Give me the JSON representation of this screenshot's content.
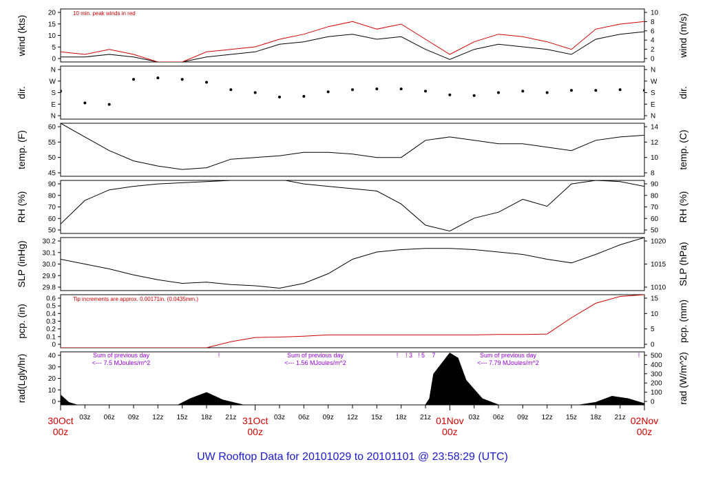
{
  "title": "UW Rooftop Data for 20101029  to  20101101 @ 23:58:29  (UTC)",
  "colors": {
    "frame": "#000000",
    "line": "#000000",
    "peak": "#d00000",
    "precip": "#d00000",
    "note": "#d00000",
    "sums": "#9400d3",
    "title": "#1a1acc",
    "days": "#d00000"
  },
  "x_axis": {
    "hour_ticks": [
      "03z",
      "06z",
      "09z",
      "12z",
      "15z",
      "18z",
      "21z",
      "03z",
      "06z",
      "09z",
      "12z",
      "15z",
      "18z",
      "21z",
      "03z",
      "06z",
      "09z",
      "12z",
      "15z",
      "18z",
      "21z"
    ],
    "hour_positions_h": [
      3,
      6,
      9,
      12,
      15,
      18,
      21,
      27,
      30,
      33,
      36,
      39,
      42,
      45,
      51,
      54,
      57,
      60,
      63,
      66,
      69
    ],
    "days": [
      {
        "date": "30Oct",
        "time": "00z",
        "h": 0
      },
      {
        "date": "31Oct",
        "time": "00z",
        "h": 24
      },
      {
        "date": "01Nov",
        "time": "00z",
        "h": 48
      },
      {
        "date": "02Nov",
        "time": "00z",
        "h": 72
      }
    ]
  },
  "panels": {
    "wind": {
      "left_label": "wind (kts)",
      "right_label": "wind (m/s)",
      "left_ticks": [
        "0",
        "5",
        "10",
        "15",
        "20"
      ],
      "right_ticks": [
        "0",
        "2",
        "4",
        "6",
        "8",
        "10"
      ],
      "note": "10 min. peak winds in red"
    },
    "dir": {
      "left_label": "dir.",
      "right_label": "dir.",
      "left_ticks": [
        "N",
        "E",
        "S",
        "W",
        "N"
      ],
      "right_ticks": [
        "N",
        "E",
        "S",
        "W",
        "N"
      ]
    },
    "temp": {
      "left_label": "temp. (F)",
      "right_label": "temp. (C)",
      "left_ticks": [
        "45",
        "50",
        "55",
        "60"
      ],
      "right_ticks": [
        "8",
        "10",
        "12",
        "14"
      ]
    },
    "rh": {
      "left_label": "RH (%)",
      "right_label": "RH (%)",
      "left_ticks": [
        "50",
        "60",
        "70",
        "80",
        "90"
      ],
      "right_ticks": [
        "50",
        "60",
        "70",
        "80",
        "90"
      ]
    },
    "slp": {
      "left_label": "SLP (inHg)",
      "right_label": "SLP (hPa)",
      "left_ticks": [
        "29.8",
        "29.9",
        "30.0",
        "30.1",
        "30.2"
      ],
      "right_ticks": [
        "1010",
        "1015",
        "1020"
      ]
    },
    "pcp": {
      "left_label": "pcp. (in)",
      "right_label": "pcp. (mm)",
      "left_ticks": [
        "0",
        "0.1",
        "0.2",
        "0.3",
        "0.4",
        "0.5",
        "0.6"
      ],
      "right_ticks": [
        "0",
        "5",
        "10",
        "15"
      ],
      "note": "Tip increments are approx. 0.00171in. (0.0435mm.)"
    },
    "rad": {
      "left_label": "rad(Lgly/hr)",
      "right_label": "rad (W/m^2)",
      "left_ticks": [
        "0",
        "10",
        "20",
        "30",
        "40"
      ],
      "right_ticks": [
        "0",
        "100",
        "200",
        "300",
        "400",
        "500"
      ],
      "sums": [
        {
          "line1": "Sum of previous day",
          "line2": "<--- 7.5 MJoules/m^2"
        },
        {
          "line1": "Sum of previous day",
          "line2": "<--- 1.56 MJoules/m^2"
        },
        {
          "line1": "Sum of previous day",
          "line2": "<--- 7.79 MJoules/m^2"
        }
      ],
      "tip_marks": [
        "!",
        "!",
        "! 3",
        "! 5",
        "7",
        "!"
      ]
    }
  },
  "chart_data": [
    {
      "type": "line",
      "title": "wind",
      "ylabel": "wind (kts)",
      "y2label": "wind (m/s)",
      "ylim": [
        0,
        21
      ],
      "x_unit": "hours since 30Oct 00z",
      "xlim": [
        0,
        72
      ],
      "series": [
        {
          "x": [
            0,
            3,
            6,
            9,
            12,
            15,
            18,
            21,
            24,
            27,
            30,
            33,
            36,
            39,
            42,
            45,
            48,
            51,
            54,
            57,
            60,
            63,
            66,
            69,
            72
          ],
          "y": [
            2,
            2,
            3,
            2,
            0,
            0,
            2,
            3,
            4,
            7,
            8,
            10,
            11,
            9,
            10,
            5,
            1,
            5,
            7,
            6,
            5,
            3,
            9,
            11,
            12
          ]
        },
        {
          "x": [
            0,
            3,
            6,
            9,
            12,
            15,
            18,
            21,
            24,
            27,
            30,
            33,
            36,
            39,
            42,
            45,
            48,
            51,
            54,
            57,
            60,
            63,
            66,
            69,
            72
          ],
          "y": [
            4,
            3,
            5,
            3,
            0,
            0,
            4,
            5,
            6,
            9,
            11,
            14,
            16,
            13,
            15,
            9,
            3,
            8,
            11,
            10,
            8,
            5,
            13,
            15,
            16
          ]
        }
      ]
    },
    {
      "type": "scatter",
      "title": "dir",
      "ylabel": "dir.",
      "ylim": [
        0,
        360
      ],
      "x_unit": "hours since 30Oct 00z",
      "xlim": [
        0,
        72
      ],
      "series": [
        {
          "x": [
            0,
            3,
            6,
            9,
            12,
            15,
            18,
            21,
            24,
            27,
            30,
            33,
            36,
            39,
            42,
            45,
            48,
            51,
            54,
            57,
            60,
            63,
            66,
            69,
            72
          ],
          "y": [
            190,
            110,
            100,
            270,
            280,
            270,
            250,
            200,
            180,
            150,
            155,
            185,
            200,
            205,
            205,
            190,
            165,
            160,
            180,
            190,
            180,
            195,
            195,
            200,
            195
          ]
        }
      ]
    },
    {
      "type": "line",
      "title": "temp",
      "ylabel": "temp. (F)",
      "y2label": "temp. (C)",
      "ylim": [
        44.5,
        60
      ],
      "x_unit": "hours since 30Oct 00z",
      "xlim": [
        0,
        72
      ],
      "series": [
        {
          "x": [
            0,
            3,
            6,
            9,
            12,
            15,
            18,
            21,
            24,
            27,
            30,
            33,
            36,
            39,
            42,
            45,
            48,
            51,
            54,
            57,
            60,
            63,
            66,
            69,
            72
          ],
          "y": [
            60,
            56,
            52,
            49,
            47.5,
            46.5,
            47,
            49.5,
            50,
            50.5,
            51.5,
            51.5,
            51,
            50,
            50,
            55,
            56,
            55,
            54,
            54,
            53,
            52,
            55,
            56,
            56.5
          ]
        }
      ]
    },
    {
      "type": "line",
      "title": "rh",
      "ylabel": "RH (%)",
      "y2label": "RH (%)",
      "ylim": [
        50,
        95
      ],
      "x_unit": "hours since 30Oct 00z",
      "xlim": [
        0,
        72
      ],
      "series": [
        {
          "x": [
            0,
            3,
            6,
            9,
            12,
            15,
            18,
            21,
            24,
            27,
            30,
            33,
            36,
            39,
            42,
            45,
            48,
            51,
            54,
            57,
            60,
            63,
            66,
            69,
            72
          ],
          "y": [
            58,
            78,
            87,
            90,
            92,
            93,
            94,
            95,
            96,
            96,
            92,
            90,
            88,
            86,
            75,
            57,
            52,
            63,
            68,
            79,
            73,
            92,
            95,
            94,
            90
          ]
        }
      ]
    },
    {
      "type": "line",
      "title": "slp",
      "ylabel": "SLP (inHg)",
      "y2label": "SLP (hPa)",
      "ylim": [
        29.79,
        30.23
      ],
      "x_unit": "hours since 30Oct 00z",
      "xlim": [
        0,
        72
      ],
      "series": [
        {
          "x": [
            0,
            3,
            6,
            9,
            12,
            15,
            18,
            21,
            24,
            27,
            30,
            33,
            36,
            39,
            42,
            45,
            48,
            51,
            54,
            57,
            60,
            63,
            66,
            69,
            72
          ],
          "y": [
            30.05,
            30.01,
            29.97,
            29.92,
            29.88,
            29.85,
            29.86,
            29.84,
            29.83,
            29.81,
            29.85,
            29.93,
            30.05,
            30.11,
            30.13,
            30.14,
            30.14,
            30.13,
            30.11,
            30.09,
            30.05,
            30.02,
            30.09,
            30.17,
            30.23
          ]
        }
      ]
    },
    {
      "type": "line",
      "title": "pcp",
      "ylabel": "pcp. (in)",
      "y2label": "pcp. (mm)",
      "ylim": [
        0,
        0.62
      ],
      "x_unit": "hours since 30Oct 00z",
      "xlim": [
        0,
        72
      ],
      "series": [
        {
          "x": [
            0,
            3,
            6,
            9,
            12,
            15,
            18,
            21,
            24,
            27,
            30,
            33,
            36,
            39,
            42,
            45,
            48,
            51,
            54,
            57,
            60,
            63,
            66,
            69,
            72
          ],
          "y": [
            0,
            0,
            0,
            0,
            0,
            0,
            0,
            0.07,
            0.12,
            0.125,
            0.135,
            0.15,
            0.15,
            0.15,
            0.15,
            0.15,
            0.15,
            0.15,
            0.155,
            0.155,
            0.16,
            0.35,
            0.52,
            0.6,
            0.62
          ]
        }
      ]
    },
    {
      "type": "area",
      "title": "rad",
      "ylabel": "rad(Lgly/hr)",
      "y2label": "rad (W/m^2)",
      "ylim": [
        0,
        43
      ],
      "x_unit": "hours since 30Oct 00z",
      "xlim": [
        0,
        72
      ],
      "series": [
        {
          "x": [
            0,
            1,
            2,
            12,
            14.5,
            16,
            18,
            20,
            22.5,
            35,
            36,
            45,
            45.5,
            46,
            48,
            49,
            50,
            52,
            54,
            62,
            64,
            66,
            68,
            70,
            72
          ],
          "y": [
            8,
            2,
            0,
            0,
            0,
            5,
            10,
            4,
            0,
            0,
            0,
            0,
            5,
            25,
            42,
            38,
            20,
            5,
            0,
            0,
            0,
            2,
            7,
            5,
            1
          ]
        }
      ]
    }
  ]
}
